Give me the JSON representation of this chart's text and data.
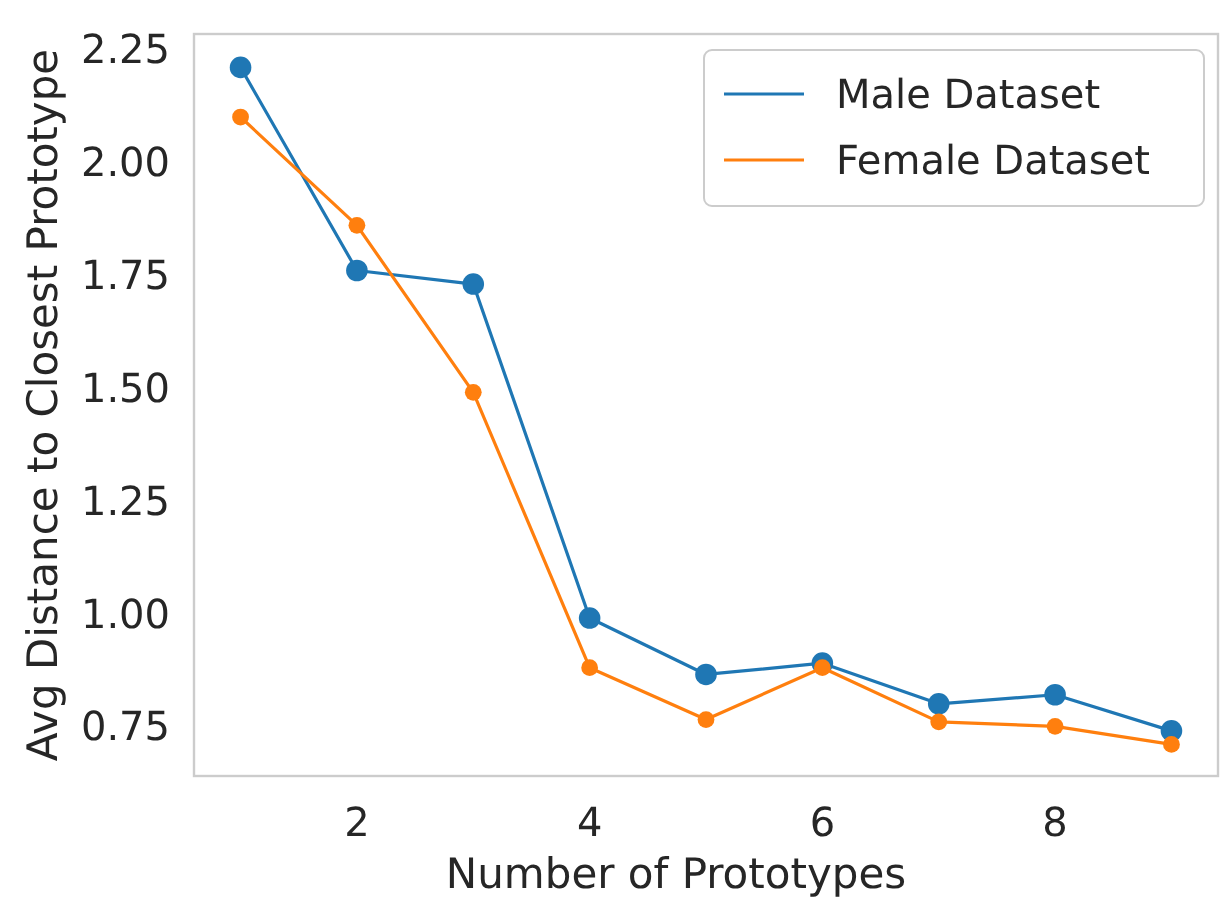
{
  "chart_data": {
    "type": "line",
    "xlabel": "Number of Prototypes",
    "ylabel": "Avg Distance to Closest Prototype",
    "x": [
      1,
      2,
      3,
      4,
      5,
      6,
      7,
      8,
      9
    ],
    "series": [
      {
        "name": "Male Dataset",
        "color": "#1f77b4",
        "values": [
          2.21,
          1.76,
          1.73,
          0.99,
          0.865,
          0.89,
          0.8,
          0.82,
          0.74
        ]
      },
      {
        "name": "Female Dataset",
        "color": "#ff7f0e",
        "values": [
          2.1,
          1.86,
          1.49,
          0.88,
          0.765,
          0.88,
          0.76,
          0.75,
          0.71
        ]
      }
    ],
    "xlim": [
      0.6,
      9.4
    ],
    "ylim": [
      0.64,
      2.284
    ],
    "xticks": [
      2,
      4,
      6,
      8
    ],
    "yticks": [
      {
        "value": 0.75,
        "label": "0.75"
      },
      {
        "value": 1,
        "label": "1.00"
      },
      {
        "value": 1.25,
        "label": "1.25"
      },
      {
        "value": 1.5,
        "label": "1.50"
      },
      {
        "value": 1.75,
        "label": "1.75"
      },
      {
        "value": 2,
        "label": "2.00"
      },
      {
        "value": 2.25,
        "label": "2.25"
      }
    ],
    "grid": false,
    "legend": "top right",
    "marker": "circle",
    "line_style": "solid"
  }
}
